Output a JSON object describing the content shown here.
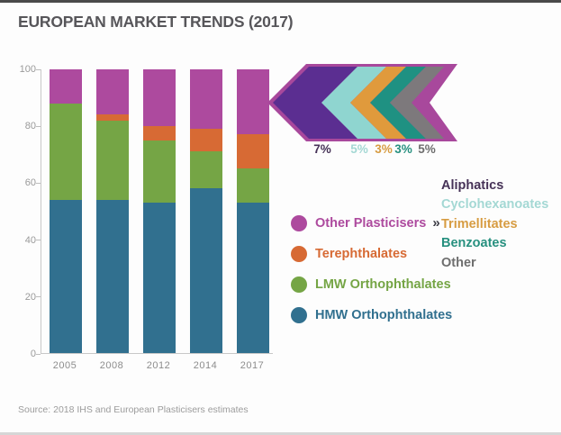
{
  "title": "EUROPEAN MARKET TRENDS (2017)",
  "source": "Source: 2018 IHS and European Plasticisers estimates",
  "chart_data": {
    "type": "bar",
    "stacked": true,
    "title": "EUROPEAN MARKET TRENDS (2017)",
    "xlabel": "",
    "ylabel": "",
    "ylim": [
      0,
      100
    ],
    "yticks": [
      0,
      20,
      40,
      60,
      80,
      100
    ],
    "grid": false,
    "categories": [
      "2005",
      "2008",
      "2012",
      "2014",
      "2017"
    ],
    "series": [
      {
        "name": "HMW Orthophthalates",
        "color": "#31708f",
        "values": [
          54,
          54,
          53,
          58,
          53
        ]
      },
      {
        "name": "LMW Orthophthalates",
        "color": "#75a545",
        "values": [
          34,
          28,
          22,
          13,
          12
        ]
      },
      {
        "name": "Terephthalates",
        "color": "#d76a34",
        "values": [
          0,
          2,
          5,
          8,
          12
        ]
      },
      {
        "name": "Other Plasticisers",
        "color": "#ad4a9e",
        "values": [
          12,
          16,
          20,
          21,
          23
        ]
      }
    ]
  },
  "legend": {
    "arrow_symbol": "»",
    "items": [
      {
        "label": "Other Plasticisers",
        "color": "#ad4a9e"
      },
      {
        "label": "Terephthalates",
        "color": "#d76a34"
      },
      {
        "label": "LMW Orthophthalates",
        "color": "#75a545"
      },
      {
        "label": "HMW Orthophthalates",
        "color": "#31708f"
      }
    ]
  },
  "breakdown": {
    "outline_color": "#a8489c",
    "items": [
      {
        "name": "Aliphatics",
        "pct": "7%",
        "band_color": "#5b2e91",
        "text_color": "#463257"
      },
      {
        "name": "Cyclohexanoates",
        "pct": "5%",
        "band_color": "#8fd5d0",
        "text_color": "#a4d8d4"
      },
      {
        "name": "Trimellitates",
        "pct": "3%",
        "band_color": "#e09a3c",
        "text_color": "#d79c42"
      },
      {
        "name": "Benzoates",
        "pct": "3%",
        "band_color": "#1f9182",
        "text_color": "#27907f"
      },
      {
        "name": "Other",
        "pct": "5%",
        "band_color": "#7d797c",
        "text_color": "#6e6e6e"
      }
    ]
  }
}
